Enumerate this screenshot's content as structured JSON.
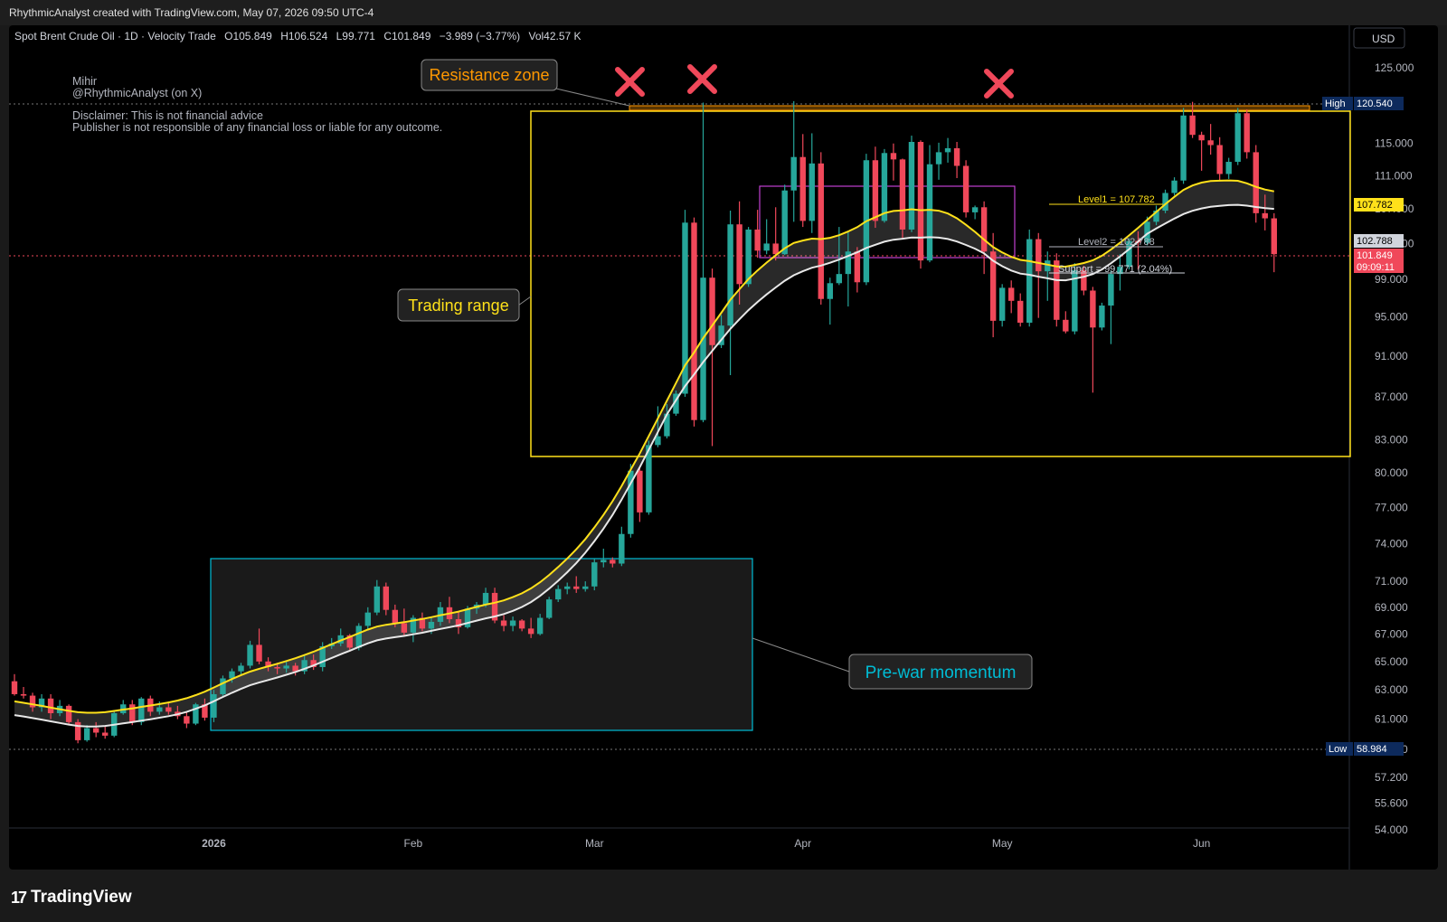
{
  "header": {
    "attribution": "RhythmicAnalyst created with TradingView.com, May 07, 2026 09:50 UTC-4"
  },
  "legend": {
    "symbol": "Spot Brent Crude Oil · 1D · Velocity Trade",
    "o_label": "O",
    "o_value": "105.849",
    "h_label": "H",
    "h_value": "106.524",
    "l_label": "L",
    "l_value": "99.771",
    "c_label": "C",
    "c_value": "101.849",
    "change": "−3.989 (−3.77%)",
    "vol_label": "Vol",
    "vol_value": "42.57 K"
  },
  "currency": "USD",
  "author": {
    "name": "Mihir",
    "handle": "@RhythmicAnalyst (on X)",
    "disclaimer1": "Disclaimer: This is not financial advice",
    "disclaimer2": "Publisher is not responsible of any financial loss or liable for any outcome."
  },
  "annotations": {
    "resistance": "Resistance zone",
    "trading_range": "Trading range",
    "pre_war": "Pre-war momentum",
    "level1": "Level1 =  107.782",
    "level2": "Level2 =  102.788",
    "support": "Support =  99.771 (2.04%)"
  },
  "price_tags": {
    "high_label": "High",
    "high_value": "120.540",
    "low_label": "Low",
    "low_value": "58.984",
    "level1": "107.782",
    "level2": "102.788",
    "last": "101.849",
    "countdown": "09:09:11"
  },
  "colors": {
    "up": "#26a69a",
    "down": "#f0485a",
    "yellow": "#ffe11a",
    "orange": "#ff9800",
    "cyan": "#00bcd4",
    "magenta": "#c040d0"
  },
  "footer": {
    "brand": "TradingView"
  },
  "chart_data": {
    "type": "candlestick",
    "y_scale": "log",
    "y_range": [
      54.0,
      127.5
    ],
    "y_ticks": [
      "125.000",
      "115.000",
      "111.000",
      "107.000",
      "103.000",
      "99.000",
      "95.000",
      "91.000",
      "87.000",
      "83.000",
      "80.000",
      "77.000",
      "74.000",
      "71.000",
      "69.000",
      "67.000",
      "65.000",
      "63.000",
      "61.000",
      "59.000",
      "57.200",
      "55.600",
      "54.000"
    ],
    "x_ticks": [
      {
        "label": "2026",
        "index": 22
      },
      {
        "label": "Feb",
        "index": 44
      },
      {
        "label": "Mar",
        "index": 64
      },
      {
        "label": "Apr",
        "index": 87
      },
      {
        "label": "May",
        "index": 109
      },
      {
        "label": "Jun",
        "index": 131
      }
    ],
    "candles": [
      [
        63.6,
        64.1,
        62.6,
        62.7
      ],
      [
        62.7,
        63.2,
        62.4,
        62.6
      ],
      [
        62.6,
        62.8,
        61.5,
        61.8
      ],
      [
        61.8,
        62.7,
        61.5,
        62.4
      ],
      [
        62.4,
        62.7,
        61.0,
        61.4
      ],
      [
        61.4,
        62.3,
        61.2,
        61.9
      ],
      [
        61.9,
        62.0,
        60.6,
        60.8
      ],
      [
        60.8,
        61.0,
        59.4,
        59.6
      ],
      [
        59.6,
        60.6,
        59.5,
        60.4
      ],
      [
        60.4,
        60.8,
        59.8,
        60.1
      ],
      [
        60.1,
        60.5,
        59.7,
        59.9
      ],
      [
        59.9,
        61.6,
        59.8,
        61.4
      ],
      [
        61.4,
        62.3,
        61.3,
        62.0
      ],
      [
        62.0,
        62.3,
        60.6,
        60.8
      ],
      [
        60.8,
        62.5,
        60.6,
        62.4
      ],
      [
        62.4,
        62.6,
        61.2,
        61.5
      ],
      [
        61.5,
        62.2,
        61.3,
        61.8
      ],
      [
        61.8,
        62.2,
        61.3,
        61.5
      ],
      [
        61.5,
        61.9,
        61.0,
        61.2
      ],
      [
        61.2,
        61.5,
        60.4,
        60.7
      ],
      [
        60.7,
        62.1,
        60.6,
        62.0
      ],
      [
        62.0,
        62.4,
        60.9,
        61.1
      ],
      [
        61.1,
        63.0,
        60.8,
        62.7
      ],
      [
        62.7,
        64.0,
        62.5,
        63.8
      ],
      [
        63.8,
        64.5,
        63.5,
        64.3
      ],
      [
        64.3,
        64.9,
        64.0,
        64.7
      ],
      [
        64.7,
        66.5,
        64.5,
        66.2
      ],
      [
        66.2,
        67.4,
        64.8,
        65.0
      ],
      [
        65.0,
        65.3,
        64.3,
        64.6
      ],
      [
        64.6,
        64.9,
        64.1,
        64.5
      ],
      [
        64.5,
        65.0,
        64.2,
        64.7
      ],
      [
        64.7,
        64.9,
        64.0,
        64.3
      ],
      [
        64.3,
        65.4,
        64.1,
        65.1
      ],
      [
        65.1,
        65.5,
        64.4,
        64.6
      ],
      [
        64.6,
        66.4,
        64.3,
        66.1
      ],
      [
        66.1,
        66.7,
        65.9,
        66.3
      ],
      [
        66.3,
        67.4,
        66.1,
        66.9
      ],
      [
        66.9,
        67.0,
        65.7,
        66.0
      ],
      [
        66.0,
        67.8,
        65.8,
        67.6
      ],
      [
        67.6,
        69.0,
        67.3,
        68.6
      ],
      [
        68.6,
        71.1,
        68.4,
        70.6
      ],
      [
        70.6,
        70.9,
        68.4,
        68.8
      ],
      [
        68.8,
        69.2,
        67.5,
        67.8
      ],
      [
        67.8,
        68.9,
        66.9,
        67.1
      ],
      [
        67.1,
        68.4,
        66.4,
        68.2
      ],
      [
        68.2,
        68.6,
        67.2,
        67.4
      ],
      [
        67.4,
        68.2,
        67.0,
        67.9
      ],
      [
        67.9,
        69.4,
        67.6,
        69.0
      ],
      [
        69.0,
        69.8,
        67.8,
        68.1
      ],
      [
        68.1,
        68.7,
        67.0,
        67.5
      ],
      [
        67.5,
        69.1,
        67.4,
        68.9
      ],
      [
        68.9,
        69.4,
        68.5,
        69.2
      ],
      [
        69.2,
        70.5,
        69.0,
        70.1
      ],
      [
        70.1,
        70.5,
        67.8,
        68.0
      ],
      [
        68.0,
        68.4,
        67.2,
        67.6
      ],
      [
        67.6,
        68.3,
        67.2,
        68.0
      ],
      [
        68.0,
        68.1,
        67.2,
        67.4
      ],
      [
        67.4,
        68.2,
        66.7,
        67.0
      ],
      [
        67.0,
        68.5,
        66.9,
        68.2
      ],
      [
        68.2,
        69.8,
        68.1,
        69.6
      ],
      [
        69.6,
        70.7,
        69.4,
        70.4
      ],
      [
        70.4,
        70.9,
        70.0,
        70.6
      ],
      [
        70.6,
        71.4,
        70.1,
        70.4
      ],
      [
        70.4,
        71.0,
        70.2,
        70.6
      ],
      [
        70.6,
        72.8,
        70.3,
        72.5
      ],
      [
        72.5,
        73.6,
        72.1,
        72.7
      ],
      [
        72.7,
        72.9,
        72.1,
        72.4
      ],
      [
        72.4,
        75.4,
        72.2,
        74.8
      ],
      [
        74.8,
        80.8,
        74.5,
        80.2
      ],
      [
        80.2,
        80.5,
        75.8,
        76.6
      ],
      [
        76.6,
        82.9,
        76.4,
        82.5
      ],
      [
        82.5,
        86.1,
        82.3,
        83.3
      ],
      [
        83.3,
        86.3,
        83.1,
        85.4
      ],
      [
        85.4,
        87.6,
        85.2,
        87.3
      ],
      [
        87.3,
        106.9,
        87.0,
        105.4
      ],
      [
        105.4,
        106.0,
        84.2,
        84.8
      ],
      [
        84.8,
        120.3,
        84.6,
        99.2
      ],
      [
        99.2,
        100.2,
        82.4,
        92.1
      ],
      [
        92.1,
        95.2,
        91.8,
        94.1
      ],
      [
        94.1,
        106.8,
        89.1,
        105.2
      ],
      [
        105.2,
        107.9,
        96.3,
        98.5
      ],
      [
        98.5,
        104.9,
        98.2,
        104.6
      ],
      [
        104.6,
        106.9,
        101.4,
        102.2
      ],
      [
        102.2,
        105.8,
        101.8,
        103.0
      ],
      [
        103.0,
        107.2,
        101.1,
        101.8
      ],
      [
        101.8,
        109.9,
        101.7,
        109.2
      ],
      [
        109.2,
        120.5,
        105.5,
        113.3
      ],
      [
        113.3,
        116.2,
        104.9,
        105.6
      ],
      [
        105.6,
        116.3,
        104.2,
        112.5
      ],
      [
        112.5,
        113.9,
        96.3,
        96.9
      ],
      [
        96.9,
        99.2,
        94.2,
        98.6
      ],
      [
        98.6,
        104.9,
        98.4,
        99.6
      ],
      [
        99.6,
        104.4,
        96.1,
        102.1
      ],
      [
        102.1,
        102.6,
        97.6,
        98.7
      ],
      [
        98.7,
        113.7,
        98.4,
        112.9
      ],
      [
        112.9,
        114.6,
        104.8,
        105.6
      ],
      [
        105.6,
        114.3,
        105.4,
        113.8
      ],
      [
        113.8,
        115.0,
        110.4,
        113.0
      ],
      [
        113.0,
        113.1,
        103.5,
        104.6
      ],
      [
        104.6,
        116.0,
        104.3,
        115.2
      ],
      [
        115.2,
        115.4,
        100.2,
        101.1
      ],
      [
        101.1,
        114.8,
        100.9,
        112.4
      ],
      [
        112.4,
        115.1,
        110.5,
        113.9
      ],
      [
        113.9,
        115.7,
        112.6,
        114.4
      ],
      [
        114.4,
        115.2,
        110.7,
        112.2
      ],
      [
        112.2,
        112.9,
        106.0,
        106.6
      ],
      [
        106.6,
        107.4,
        105.8,
        107.2
      ],
      [
        107.2,
        107.9,
        99.6,
        102.1
      ],
      [
        102.1,
        104.2,
        92.9,
        94.6
      ],
      [
        94.6,
        98.5,
        94.0,
        98.1
      ],
      [
        98.1,
        98.9,
        95.4,
        96.7
      ],
      [
        96.7,
        97.5,
        94.0,
        94.4
      ],
      [
        94.4,
        104.6,
        94.0,
        103.5
      ],
      [
        103.5,
        104.2,
        94.9,
        99.9
      ],
      [
        99.9,
        102.1,
        96.7,
        101.1
      ],
      [
        101.1,
        101.9,
        94.0,
        94.7
      ],
      [
        94.7,
        95.6,
        93.3,
        93.5
      ],
      [
        93.5,
        100.8,
        93.2,
        100.0
      ],
      [
        100.0,
        100.5,
        97.3,
        97.8
      ],
      [
        97.8,
        98.2,
        87.4,
        93.9
      ],
      [
        93.9,
        96.5,
        93.6,
        96.2
      ],
      [
        96.2,
        100.0,
        92.2,
        99.6
      ],
      [
        99.6,
        101.8,
        97.8,
        100.4
      ],
      [
        100.4,
        103.6,
        100.1,
        103.3
      ],
      [
        103.3,
        104.4,
        100.1,
        103.1
      ],
      [
        103.1,
        106.1,
        102.8,
        105.5
      ],
      [
        105.5,
        107.4,
        105.1,
        106.8
      ],
      [
        106.8,
        109.3,
        106.5,
        108.9
      ],
      [
        108.9,
        110.8,
        108.6,
        110.4
      ],
      [
        110.4,
        119.6,
        110.0,
        118.6
      ],
      [
        118.6,
        120.4,
        115.7,
        116.1
      ],
      [
        116.1,
        116.5,
        111.6,
        115.4
      ],
      [
        115.4,
        117.5,
        113.6,
        114.8
      ],
      [
        114.8,
        115.8,
        110.3,
        111.2
      ],
      [
        111.2,
        113.2,
        110.6,
        112.7
      ],
      [
        112.7,
        119.6,
        112.3,
        118.9
      ],
      [
        118.9,
        119.4,
        113.1,
        113.9
      ],
      [
        113.9,
        114.8,
        105.4,
        106.5
      ],
      [
        106.5,
        108.7,
        104.5,
        105.9
      ],
      [
        105.9,
        106.5,
        99.8,
        101.8
      ]
    ]
  }
}
